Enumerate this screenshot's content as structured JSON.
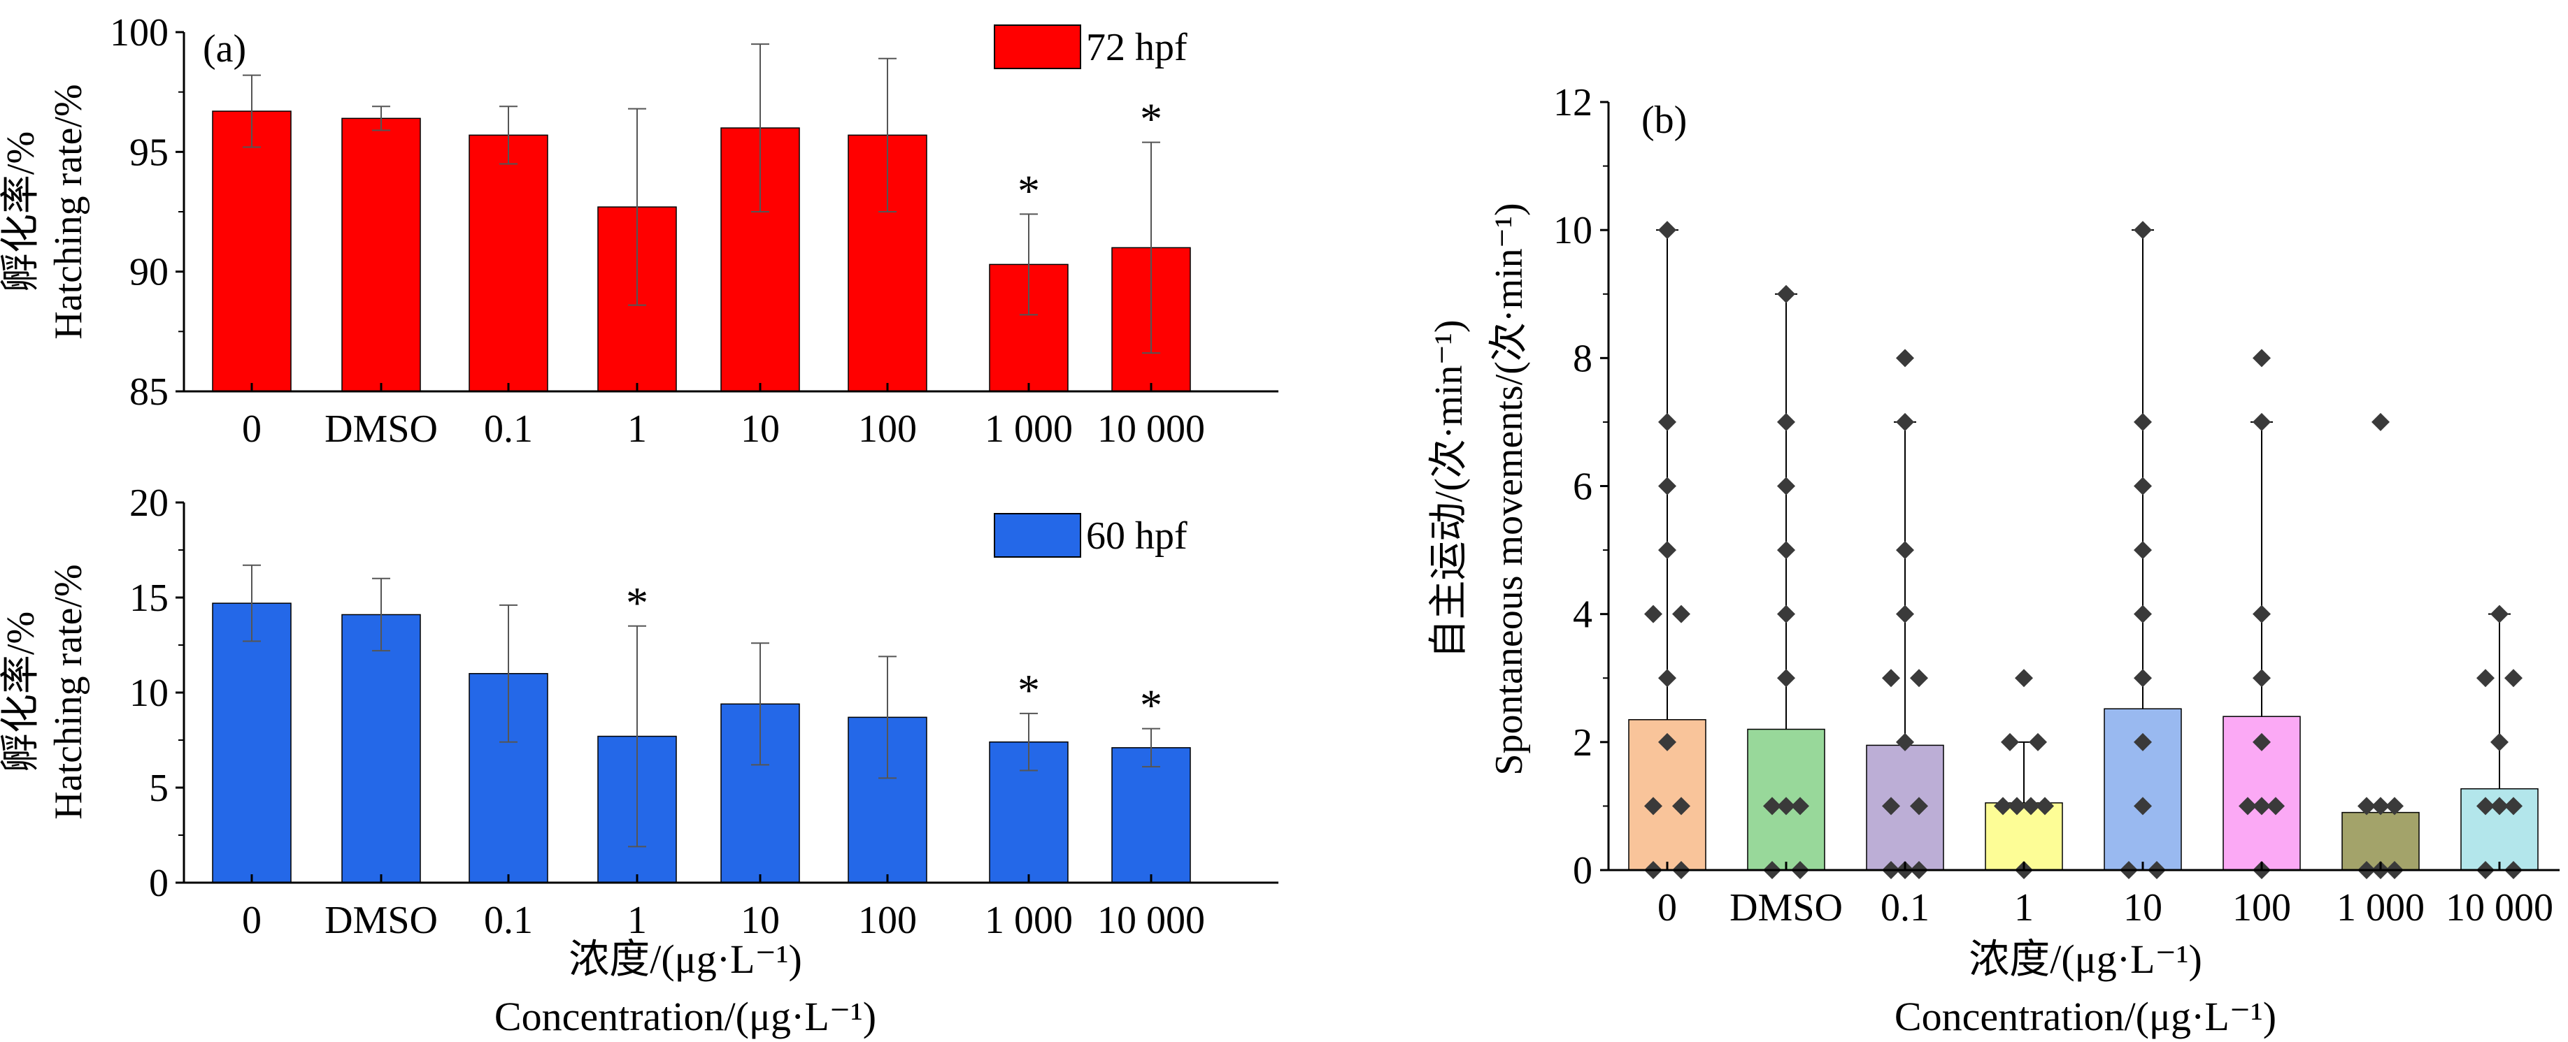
{
  "chart_data": [
    {
      "panel": "(a)",
      "type": "bar",
      "categories": [
        "0",
        "DMSO",
        "0.1",
        "1",
        "10",
        "100",
        "1 000",
        "10 000"
      ],
      "series": [
        {
          "name": "72 hpf",
          "color": "#ff0000",
          "values": [
            96.7,
            96.4,
            95.7,
            92.7,
            96.0,
            95.7,
            90.3,
            91.0
          ],
          "errors": [
            1.5,
            0.5,
            1.2,
            4.1,
            3.5,
            3.2,
            2.1,
            4.4
          ],
          "significant": [
            false,
            false,
            false,
            false,
            false,
            false,
            true,
            true
          ]
        }
      ],
      "ylabel_cn": "孵化率/%",
      "ylabel": "Hatching rate/%",
      "ylim": [
        85,
        100
      ],
      "yticks": [
        "85",
        "90",
        "95",
        "100"
      ],
      "legend_position": "top-right"
    },
    {
      "panel": "",
      "type": "bar",
      "categories": [
        "0",
        "DMSO",
        "0.1",
        "1",
        "10",
        "100",
        "1 000",
        "10 000"
      ],
      "series": [
        {
          "name": "60 hpf",
          "color": "#2468e8",
          "values": [
            14.7,
            14.1,
            11.0,
            7.7,
            9.4,
            8.7,
            7.4,
            7.1
          ],
          "errors": [
            2.0,
            1.9,
            3.6,
            5.8,
            3.2,
            3.2,
            1.5,
            1.0
          ],
          "significant": [
            false,
            false,
            false,
            true,
            false,
            false,
            true,
            true
          ]
        }
      ],
      "ylabel_cn": "孵化率/%",
      "ylabel": "Hatching rate/%",
      "ylim": [
        0,
        20
      ],
      "yticks": [
        "0",
        "5",
        "10",
        "15",
        "20"
      ],
      "xlabel_cn": "浓度/(μg·L⁻¹)",
      "xlabel": "Concentration/(μg·L⁻¹)",
      "legend_position": "top-right"
    },
    {
      "panel": "(b)",
      "type": "bar",
      "categories": [
        "0",
        "DMSO",
        "0.1",
        "1",
        "10",
        "100",
        "1 000",
        "10 000"
      ],
      "means": [
        2.35,
        2.2,
        1.95,
        1.05,
        2.52,
        2.4,
        0.9,
        1.27
      ],
      "whisker_max": [
        10,
        9,
        7,
        2,
        10,
        7,
        1,
        4
      ],
      "bar_colors": [
        "#f9c49a",
        "#98d89a",
        "#bcaed6",
        "#fdfd96",
        "#99b9f0",
        "#fba9f5",
        "#a3a36a",
        "#b3e6eb"
      ],
      "points": [
        [
          0,
          0,
          1,
          1,
          2,
          3,
          4,
          4,
          5,
          6,
          7,
          10
        ],
        [
          0,
          0,
          1,
          1,
          1,
          3,
          4,
          5,
          6,
          7,
          9
        ],
        [
          0,
          0,
          0,
          1,
          1,
          2,
          3,
          3,
          4,
          5,
          7,
          8
        ],
        [
          0,
          1,
          1,
          1,
          1,
          2,
          2,
          3
        ],
        [
          0,
          0,
          1,
          2,
          3,
          4,
          5,
          6,
          7,
          10
        ],
        [
          0,
          1,
          1,
          1,
          2,
          3,
          4,
          7,
          8
        ],
        [
          0,
          0,
          0,
          1,
          1,
          1,
          7
        ],
        [
          0,
          0,
          1,
          1,
          1,
          2,
          3,
          3,
          4
        ]
      ],
      "point_color": "#3a3a3a",
      "ylabel_cn": "自主运动/(次·min⁻¹)",
      "ylabel": "Spontaneous movements/(次·min⁻¹)",
      "ylim": [
        0,
        12
      ],
      "yticks": [
        "0",
        "2",
        "4",
        "6",
        "8",
        "10",
        "12"
      ],
      "xlabel_cn": "浓度/(μg·L⁻¹)",
      "xlabel": "Concentration/(μg·L⁻¹)"
    }
  ]
}
